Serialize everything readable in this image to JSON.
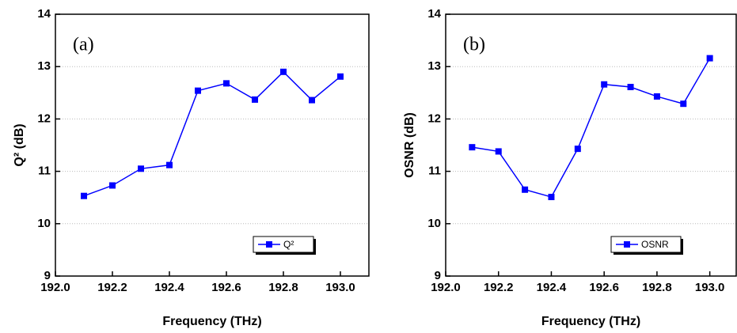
{
  "chart_data": [
    {
      "type": "line",
      "annotation": "(a)",
      "x_label": "Frequency (THz)",
      "y_label": "Q² (dB)",
      "x": [
        192.1,
        192.2,
        192.3,
        192.4,
        192.5,
        192.6,
        192.7,
        192.8,
        192.9,
        193.0
      ],
      "series": [
        {
          "name": "Q²",
          "color": "#0000ff",
          "values": [
            10.53,
            10.73,
            11.05,
            11.12,
            12.54,
            12.68,
            12.37,
            12.9,
            12.36,
            12.81
          ]
        }
      ],
      "xlim": [
        192.0,
        193.1
      ],
      "ylim": [
        9,
        14
      ],
      "xticks": [
        {
          "value": 192,
          "label": "192.0"
        },
        192.2,
        192.4,
        192.6,
        192.8,
        {
          "value": 193,
          "label": "193.0"
        }
      ],
      "yticks": [
        9,
        10,
        11,
        12,
        13,
        14
      ],
      "grid": true,
      "legend": "lower right"
    },
    {
      "type": "line",
      "annotation": "(b)",
      "x_label": "Frequency (THz)",
      "y_label": "OSNR (dB)",
      "x": [
        192.1,
        192.2,
        192.3,
        192.4,
        192.5,
        192.6,
        192.7,
        192.8,
        192.9,
        193.0
      ],
      "series": [
        {
          "name": "OSNR",
          "color": "#0000ff",
          "values": [
            11.46,
            11.38,
            10.65,
            10.51,
            11.43,
            12.66,
            12.61,
            12.43,
            12.29,
            13.16
          ]
        }
      ],
      "xlim": [
        192.0,
        193.1
      ],
      "ylim": [
        9,
        14
      ],
      "xticks": [
        {
          "value": 192,
          "label": "192.0"
        },
        192.2,
        192.4,
        192.6,
        192.8,
        {
          "value": 193,
          "label": "193.0"
        }
      ],
      "yticks": [
        9,
        10,
        11,
        12,
        13,
        14
      ],
      "grid": true,
      "legend": "lower right"
    }
  ]
}
